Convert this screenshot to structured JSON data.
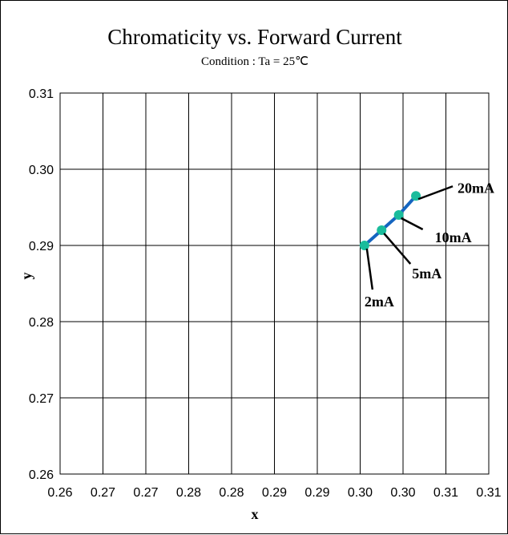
{
  "chart_data": {
    "type": "line",
    "title": "Chromaticity vs. Forward Current",
    "subtitle": "Condition : Ta = 25℃",
    "xlabel": "x",
    "ylabel": "y",
    "xlim": [
      0.26,
      0.31
    ],
    "ylim": [
      0.26,
      0.31
    ],
    "x_tick_labels": [
      "0.26",
      "0.27",
      "0.27",
      "0.28",
      "0.28",
      "0.29",
      "0.29",
      "0.30",
      "0.30",
      "0.31",
      "0.31"
    ],
    "y_tick_labels": [
      "0.26",
      "0.27",
      "0.28",
      "0.29",
      "0.30",
      "0.31"
    ],
    "grid": true,
    "series": [
      {
        "x": [
          0.2955,
          0.2975,
          0.2995,
          0.3015
        ],
        "y": [
          0.29,
          0.292,
          0.294,
          0.2965
        ],
        "labels": [
          "2mA",
          "5mA",
          "10mA",
          "20mA"
        ]
      }
    ],
    "colors": {
      "line": "#1565c0",
      "marker": "#1abc9c"
    }
  }
}
